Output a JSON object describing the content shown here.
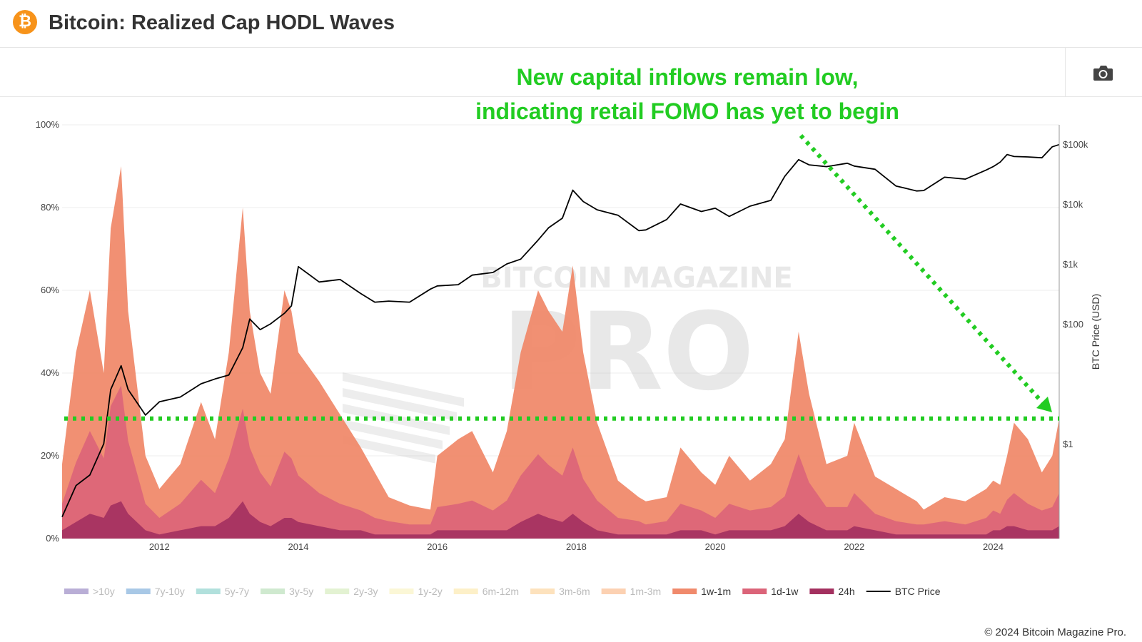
{
  "header": {
    "logo_glyph": "₿",
    "title": "Bitcoin: Realized Cap HODL Waves",
    "brand_color": "#f7931a"
  },
  "toolbar": {
    "camera_icon": "camera-icon"
  },
  "watermark": {
    "line1": "BITCOIN MAGAZINE",
    "line2": "PRO"
  },
  "annotation": {
    "line1": "New capital inflows remain low,",
    "line2": "indicating retail FOMO has yet to begin",
    "color": "#22cc22"
  },
  "copyright": "© 2024 Bitcoin Magazine Pro.",
  "chart_data": {
    "type": "area",
    "title": "Bitcoin: Realized Cap HODL Waves",
    "xlabel": "",
    "ylabel": "",
    "y2label": "BTC Price (USD)",
    "x_ticks": [
      "2012",
      "2014",
      "2016",
      "2018",
      "2020",
      "2022",
      "2024"
    ],
    "y_ticks": [
      "0%",
      "20%",
      "40%",
      "60%",
      "80%",
      "100%"
    ],
    "y2_ticks": [
      "$1",
      "$100",
      "$1k",
      "$10k",
      "$100k"
    ],
    "ylim": [
      0,
      100
    ],
    "y2_scale": "log",
    "xlim": [
      2010.6,
      2024.95
    ],
    "threshold_y": 29,
    "grid": true,
    "legend_position": "bottom",
    "legend": [
      {
        "name": ">10y",
        "color": "#b9aed6"
      },
      {
        "name": "7y-10y",
        "color": "#a8c8e6"
      },
      {
        "name": "5y-7y",
        "color": "#b1e0dc"
      },
      {
        "name": "3y-5y",
        "color": "#cfe9cf"
      },
      {
        "name": "2y-3y",
        "color": "#e3f2d2"
      },
      {
        "name": "1y-2y",
        "color": "#fbf7d6"
      },
      {
        "name": "6m-12m",
        "color": "#fdf0c8"
      },
      {
        "name": "3m-6m",
        "color": "#fde2bd"
      },
      {
        "name": "1m-3m",
        "color": "#fcd1b2"
      },
      {
        "name": "1w-1m",
        "color": "#f08a6c"
      },
      {
        "name": "1d-1w",
        "color": "#db6479"
      },
      {
        "name": "24h",
        "color": "#a3305f"
      },
      {
        "name": "BTC Price",
        "color": "#000000"
      }
    ],
    "x": [
      2010.6,
      2010.8,
      2011.0,
      2011.2,
      2011.3,
      2011.45,
      2011.55,
      2011.8,
      2012.0,
      2012.3,
      2012.6,
      2012.8,
      2013.0,
      2013.2,
      2013.3,
      2013.45,
      2013.6,
      2013.8,
      2013.9,
      2014.0,
      2014.3,
      2014.6,
      2014.9,
      2015.1,
      2015.3,
      2015.6,
      2015.9,
      2016.0,
      2016.3,
      2016.5,
      2016.8,
      2017.0,
      2017.2,
      2017.45,
      2017.6,
      2017.8,
      2017.95,
      2018.1,
      2018.3,
      2018.6,
      2018.9,
      2019.0,
      2019.3,
      2019.5,
      2019.8,
      2020.0,
      2020.2,
      2020.5,
      2020.8,
      2021.0,
      2021.2,
      2021.35,
      2021.6,
      2021.9,
      2022.0,
      2022.3,
      2022.6,
      2022.9,
      2023.0,
      2023.3,
      2023.6,
      2023.9,
      2024.0,
      2024.1,
      2024.2,
      2024.3,
      2024.5,
      2024.7,
      2024.85,
      2024.95
    ],
    "series": [
      {
        "name": "1w-1m",
        "values": [
          18,
          45,
          60,
          40,
          75,
          90,
          55,
          20,
          12,
          18,
          33,
          24,
          45,
          80,
          55,
          40,
          35,
          60,
          55,
          45,
          38,
          30,
          22,
          16,
          10,
          8,
          7,
          20,
          24,
          26,
          16,
          26,
          45,
          60,
          55,
          50,
          66,
          45,
          28,
          14,
          10,
          9,
          10,
          22,
          16,
          13,
          20,
          14,
          18,
          24,
          50,
          35,
          18,
          20,
          28,
          15,
          12,
          9,
          7,
          10,
          9,
          12,
          14,
          13,
          20,
          28,
          24,
          16,
          20,
          29
        ]
      },
      {
        "name": "1d-1w",
        "values": [
          8,
          18,
          25,
          18,
          30,
          35,
          22,
          8,
          5,
          8,
          14,
          10,
          18,
          28,
          20,
          15,
          12,
          20,
          18,
          14,
          10,
          8,
          6,
          5,
          4,
          3,
          3,
          7,
          8,
          9,
          6,
          9,
          14,
          18,
          16,
          14,
          20,
          13,
          9,
          5,
          4,
          3,
          4,
          8,
          6,
          5,
          8,
          6,
          7,
          9,
          18,
          12,
          7,
          7,
          10,
          5,
          4,
          3,
          3,
          4,
          3,
          5,
          6,
          5,
          8,
          10,
          8,
          6,
          7,
          10
        ]
      },
      {
        "name": "24h",
        "values": [
          2,
          4,
          6,
          5,
          8,
          9,
          6,
          2,
          1,
          2,
          3,
          3,
          5,
          9,
          6,
          4,
          3,
          5,
          5,
          4,
          3,
          2,
          2,
          1,
          1,
          1,
          1,
          2,
          2,
          2,
          2,
          2,
          4,
          6,
          5,
          4,
          6,
          4,
          2,
          1,
          1,
          1,
          1,
          2,
          2,
          1,
          2,
          2,
          2,
          3,
          6,
          4,
          2,
          2,
          3,
          2,
          1,
          1,
          1,
          1,
          1,
          1,
          2,
          2,
          3,
          3,
          2,
          2,
          2,
          3
        ]
      },
      {
        "name": "BTC Price",
        "values": [
          0.06,
          0.2,
          0.3,
          1.0,
          8,
          20,
          8,
          3,
          5,
          6,
          10,
          12,
          14,
          40,
          120,
          80,
          100,
          150,
          200,
          900,
          500,
          550,
          320,
          230,
          240,
          230,
          380,
          430,
          450,
          650,
          720,
          1000,
          1200,
          2500,
          4000,
          5800,
          17000,
          11000,
          8000,
          6500,
          3600,
          3700,
          5500,
          10000,
          7500,
          8500,
          6200,
          9200,
          11500,
          29000,
          55000,
          45000,
          42000,
          48000,
          43000,
          38000,
          20000,
          16500,
          16800,
          28000,
          26000,
          37000,
          42000,
          50000,
          67000,
          62000,
          61000,
          59000,
          90000,
          98000
        ]
      }
    ]
  }
}
